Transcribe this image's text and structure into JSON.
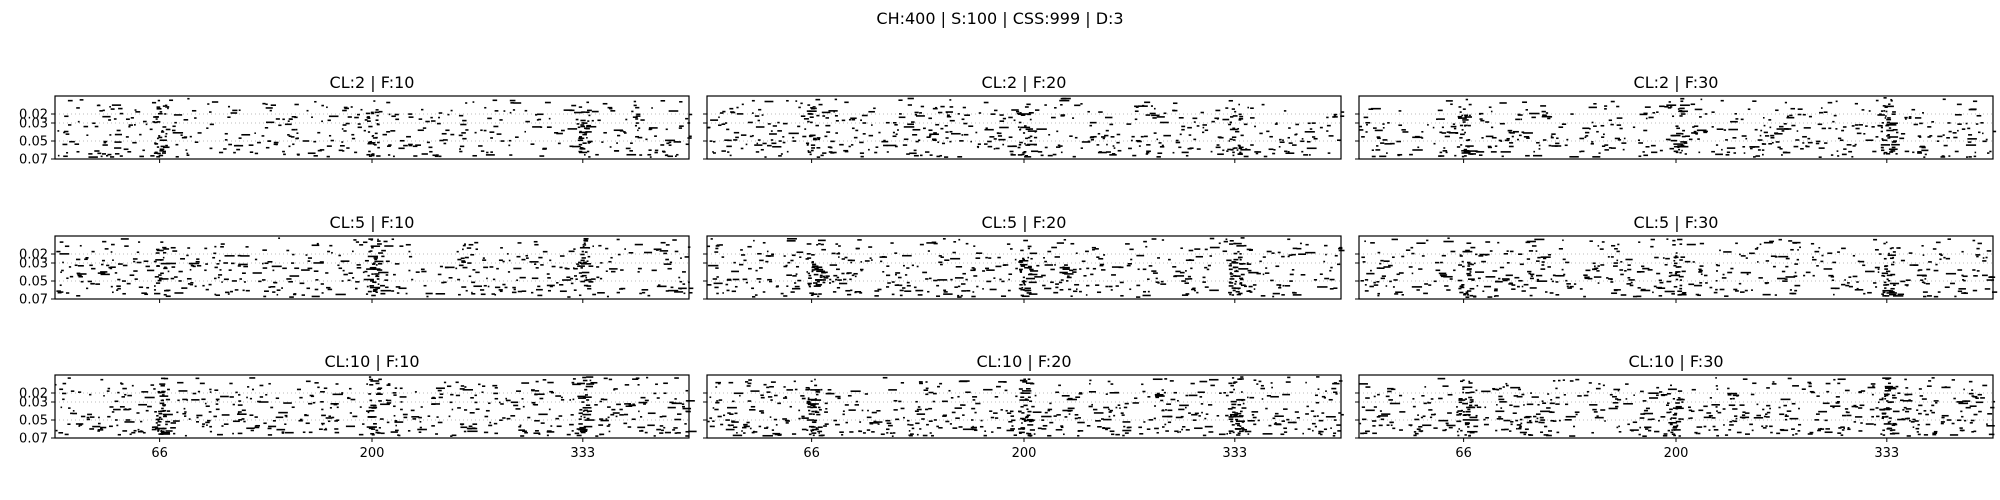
{
  "figure_title": "CH:400 | S:100 | CSS:999 | D:3",
  "chart_data": {
    "type": "scatter",
    "layout": "3x3 grid of raster-style event plots (short horizontal dashes)",
    "shared_xaxis": {
      "ticks": [
        66,
        200,
        333
      ],
      "xlim": [
        0,
        400
      ]
    },
    "shared_yaxis": {
      "ticks": [
        0.02,
        0.03,
        0.05,
        0.07
      ],
      "tick_labels": [
        "0.02",
        "0.03",
        "0.05",
        "0.07"
      ],
      "ylim": [
        0.07,
        0.0
      ],
      "inverted": true
    },
    "grid": "dotted horizontal gridlines at y ticks",
    "mark_color": "#000000",
    "panels": [
      {
        "title": "CL:2 | F:10",
        "cl": 2,
        "f": 10,
        "events": 520,
        "burst_x": [
          66,
          200,
          333
        ]
      },
      {
        "title": "CL:2 | F:20",
        "cl": 2,
        "f": 20,
        "events": 560,
        "burst_x": [
          66,
          200,
          333
        ]
      },
      {
        "title": "CL:2 | F:30",
        "cl": 2,
        "f": 30,
        "events": 560,
        "burst_x": [
          66,
          200,
          333
        ]
      },
      {
        "title": "CL:5 | F:10",
        "cl": 5,
        "f": 10,
        "events": 560,
        "burst_x": [
          66,
          200,
          333
        ]
      },
      {
        "title": "CL:5 | F:20",
        "cl": 5,
        "f": 20,
        "events": 600,
        "burst_x": [
          66,
          200,
          333
        ]
      },
      {
        "title": "CL:5 | F:30",
        "cl": 5,
        "f": 30,
        "events": 560,
        "burst_x": [
          66,
          200,
          333
        ]
      },
      {
        "title": "CL:10 | F:10",
        "cl": 10,
        "f": 10,
        "events": 620,
        "burst_x": [
          66,
          200,
          333
        ]
      },
      {
        "title": "CL:10 | F:20",
        "cl": 10,
        "f": 20,
        "events": 660,
        "burst_x": [
          66,
          200,
          333
        ]
      },
      {
        "title": "CL:10 | F:30",
        "cl": 10,
        "f": 30,
        "events": 660,
        "burst_x": [
          66,
          200,
          333
        ]
      }
    ]
  }
}
